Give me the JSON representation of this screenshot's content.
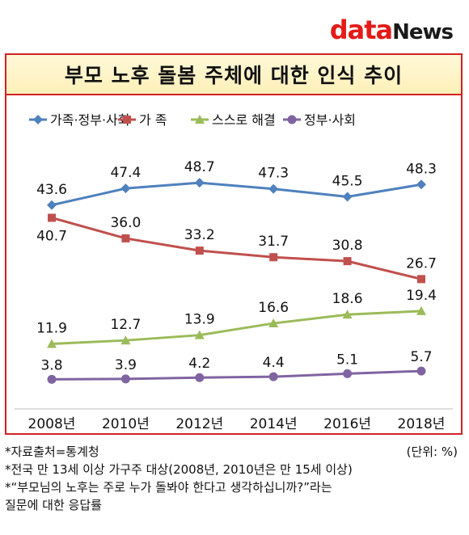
{
  "logo": {
    "part1": "data",
    "part2": "News"
  },
  "chart_data": {
    "type": "line",
    "title": "부모 노후 돌봄 주체에 대한 인식 추이",
    "categories": [
      "2008년",
      "2010년",
      "2012년",
      "2014년",
      "2016년",
      "2018년"
    ],
    "series": [
      {
        "name": "가족·정부·사회",
        "color": "#4f81bd",
        "marker": "diamond",
        "values": [
          43.6,
          47.4,
          48.7,
          47.3,
          45.5,
          48.3
        ]
      },
      {
        "name": "가 족",
        "color": "#c0504d",
        "marker": "square",
        "values": [
          40.7,
          36.0,
          33.2,
          31.7,
          30.8,
          26.7
        ]
      },
      {
        "name": "스스로 해결",
        "color": "#9bbb59",
        "marker": "triangle",
        "values": [
          11.9,
          12.7,
          13.9,
          16.6,
          18.6,
          19.4
        ]
      },
      {
        "name": "정부·사회",
        "color": "#8064a2",
        "marker": "circle",
        "values": [
          3.8,
          3.9,
          4.2,
          4.4,
          5.1,
          5.7
        ]
      }
    ],
    "legend": "top",
    "grid": false,
    "ylim": [
      0,
      55
    ]
  },
  "notes": {
    "source": "*자료출처=통계청",
    "unit": "(단위: %)",
    "line2": "*전국 만 13세 이상 가구주 대상(2008년, 2010년은 만 15세 이상)",
    "line3": "*“부모님의 노후는 주로 누가 돌봐야 한다고 생각하십니까?”라는",
    "line4": "질문에 대한 응답률"
  }
}
